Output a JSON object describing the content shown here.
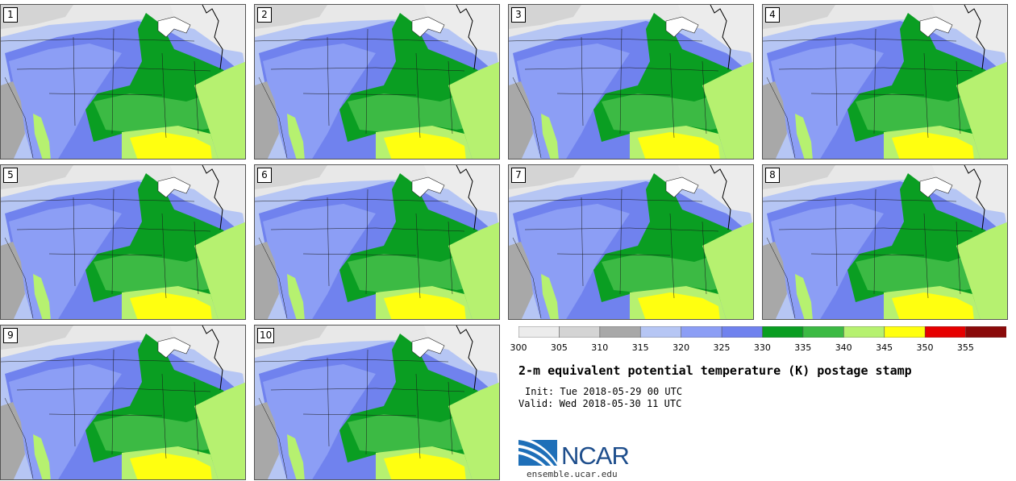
{
  "panels": [
    {
      "label": "1"
    },
    {
      "label": "2"
    },
    {
      "label": "3"
    },
    {
      "label": "4"
    },
    {
      "label": "5"
    },
    {
      "label": "6"
    },
    {
      "label": "7"
    },
    {
      "label": "8"
    },
    {
      "label": "9"
    },
    {
      "label": "10"
    }
  ],
  "colorbar": {
    "colors": [
      "#ececec",
      "#d4d4d4",
      "#a8a8a8",
      "#b6c6f4",
      "#8c9ef5",
      "#7082ee",
      "#0a9e22",
      "#3cba44",
      "#b6f170",
      "#ffff10",
      "#e60000",
      "#8a0a0a"
    ],
    "ticks": [
      "300",
      "305",
      "310",
      "315",
      "320",
      "325",
      "330",
      "335",
      "340",
      "345",
      "350",
      "355"
    ]
  },
  "title": "2-m equivalent potential temperature (K) postage stamp",
  "init": "Init: Tue 2018-05-29 00 UTC",
  "valid": "Valid: Wed 2018-05-30 11 UTC",
  "logo": {
    "text": "NCAR",
    "url_text": "ensemble.ucar.edu",
    "color": "#1e4e8c"
  }
}
